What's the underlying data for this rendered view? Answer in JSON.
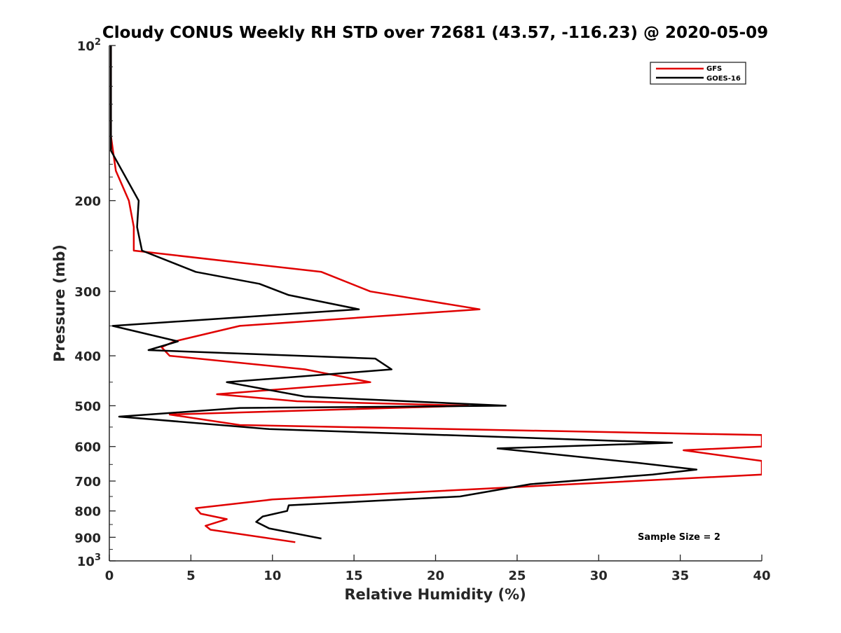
{
  "chart_data": {
    "type": "line",
    "title": "Cloudy CONUS Weekly RH STD over 72681 (43.57, -116.23) @ 2020-05-09",
    "xlabel": "Relative Humidity (%)",
    "ylabel": "Pressure (mb)",
    "xlim": [
      0,
      40
    ],
    "ylim": [
      100,
      1000
    ],
    "yscale": "log",
    "y_reversed": true,
    "x_ticks": [
      "0",
      "5",
      "10",
      "15",
      "20",
      "25",
      "30",
      "35",
      "40"
    ],
    "y_ticks": [
      {
        "value": 100,
        "base": "10",
        "exp": "2"
      },
      {
        "value": 200,
        "label": "200"
      },
      {
        "value": 300,
        "label": "300"
      },
      {
        "value": 400,
        "label": "400"
      },
      {
        "value": 500,
        "label": "500"
      },
      {
        "value": 600,
        "label": "600"
      },
      {
        "value": 700,
        "label": "700"
      },
      {
        "value": 800,
        "label": "800"
      },
      {
        "value": 900,
        "label": "900"
      },
      {
        "value": 1000,
        "base": "10",
        "exp": "3"
      }
    ],
    "grid": false,
    "legend_position": "top-right",
    "annotation": "Sample Size = 2",
    "series": [
      {
        "name": "GFS",
        "color": "#e00000",
        "points": [
          [
            0.1,
            100
          ],
          [
            0.1,
            125
          ],
          [
            0.1,
            150
          ],
          [
            0.4,
            175
          ],
          [
            1.2,
            200
          ],
          [
            1.5,
            225
          ],
          [
            1.5,
            250
          ],
          [
            13.0,
            275
          ],
          [
            16.0,
            300
          ],
          [
            22.7,
            325
          ],
          [
            8.0,
            350
          ],
          [
            4.0,
            375
          ],
          [
            3.2,
            385
          ],
          [
            3.7,
            400
          ],
          [
            12.0,
            425
          ],
          [
            16.0,
            450
          ],
          [
            6.6,
            475
          ],
          [
            11.5,
            490
          ],
          [
            22.0,
            500
          ],
          [
            3.7,
            520
          ],
          [
            8.0,
            545
          ],
          [
            40.0,
            570
          ],
          [
            40.0,
            600
          ],
          [
            35.2,
            610
          ],
          [
            40.0,
            640
          ],
          [
            40.0,
            680
          ],
          [
            10.0,
            760
          ],
          [
            5.3,
            790
          ],
          [
            5.6,
            810
          ],
          [
            7.2,
            830
          ],
          [
            5.9,
            855
          ],
          [
            6.2,
            870
          ],
          [
            11.4,
            920
          ]
        ]
      },
      {
        "name": "GOES-16",
        "color": "#000000",
        "points": [
          [
            0.1,
            100
          ],
          [
            0.1,
            125
          ],
          [
            0.1,
            150
          ],
          [
            0.1,
            160
          ],
          [
            1.8,
            200
          ],
          [
            1.7,
            225
          ],
          [
            2.0,
            250
          ],
          [
            5.3,
            275
          ],
          [
            9.2,
            290
          ],
          [
            11.0,
            305
          ],
          [
            15.3,
            325
          ],
          [
            0.2,
            350
          ],
          [
            4.2,
            375
          ],
          [
            2.4,
            390
          ],
          [
            16.3,
            405
          ],
          [
            17.3,
            425
          ],
          [
            7.2,
            450
          ],
          [
            12.0,
            480
          ],
          [
            24.3,
            500
          ],
          [
            8.0,
            505
          ],
          [
            0.6,
            525
          ],
          [
            9.8,
            555
          ],
          [
            34.5,
            590
          ],
          [
            23.8,
            605
          ],
          [
            32.3,
            645
          ],
          [
            36.0,
            665
          ],
          [
            33.3,
            680
          ],
          [
            25.8,
            710
          ],
          [
            21.5,
            750
          ],
          [
            11.0,
            780
          ],
          [
            10.9,
            800
          ],
          [
            9.4,
            820
          ],
          [
            9.0,
            840
          ],
          [
            9.8,
            865
          ],
          [
            13.0,
            905
          ]
        ]
      }
    ]
  }
}
